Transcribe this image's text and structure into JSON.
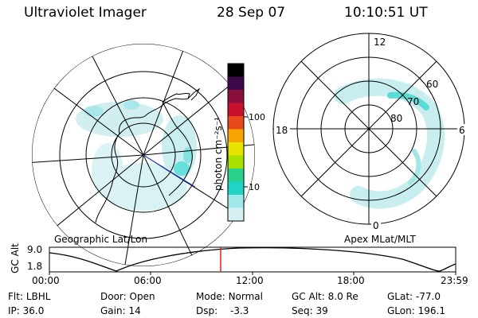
{
  "header": {
    "title": "Ultraviolet Imager",
    "date": "28 Sep 07",
    "time": "10:10:51 UT"
  },
  "colorbar": {
    "unit_label": "photon cm⁻²s⁻¹",
    "ticks": [
      "100",
      "10"
    ],
    "colors": [
      "#000000",
      "#3c0a4a",
      "#8a0f3a",
      "#c8102e",
      "#e8481a",
      "#f5a400",
      "#e8e400",
      "#a8e000",
      "#28d28a",
      "#20d4c8",
      "#9fe8ea",
      "#d6f0f2"
    ]
  },
  "geo_panel": {
    "caption": "Geographic Lat/Lon"
  },
  "mag_panel": {
    "caption": "Apex MLat/MLT",
    "mlt_labels": {
      "top": "12",
      "left": "18",
      "right": "6",
      "bottom": "0"
    },
    "lat_labels": [
      "60",
      "70",
      "80"
    ]
  },
  "altitude_plot": {
    "ylabel": "GC Alt",
    "yticks": [
      "9.0",
      "1.8"
    ],
    "xticks": [
      "00:00",
      "06:00",
      "12:00",
      "18:00",
      "23:59"
    ],
    "current_time": "10:10:51"
  },
  "info": {
    "flt_label": "Flt:",
    "flt_value": "LBHL",
    "ip_label": "IP:",
    "ip_value": "36.0",
    "door_label": "Door:",
    "door_value": "Open",
    "gain_label": "Gain:",
    "gain_value": "14",
    "mode_label": "Mode:",
    "mode_value": "Normal",
    "dsp_label": "Dsp:",
    "dsp_value": "-3.3",
    "gcalt_label": "GC Alt:",
    "gcalt_value": "8.0 Re",
    "seq_label": "Seq:",
    "seq_value": "39",
    "glat_label": "GLat:",
    "glat_value": "-77.0",
    "glon_label": "GLon:",
    "glon_value": "196.1"
  }
}
